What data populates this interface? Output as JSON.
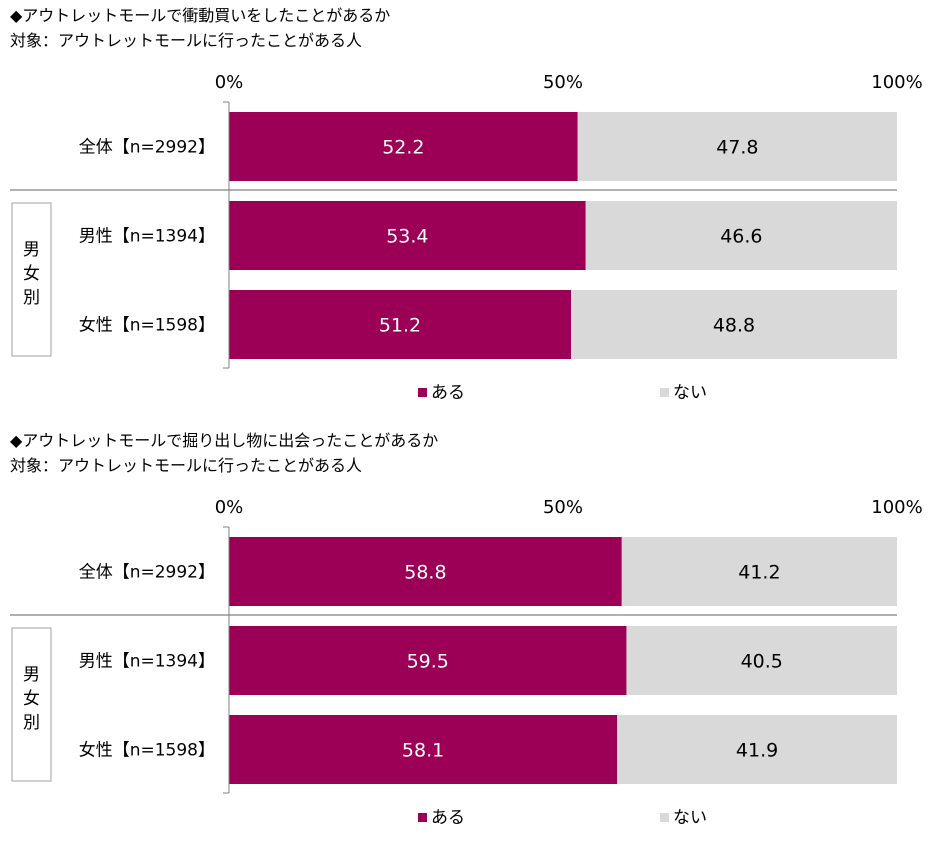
{
  "colors": {
    "yes": "#9b0056",
    "no": "#d9d9d9",
    "axis": "#808080"
  },
  "group_label": "男女別",
  "charts": [
    {
      "title": "◆アウトレットモールで衝動買いをしたことがあるか",
      "subtitle": "対象：アウトレットモールに行ったことがある人"
    },
    {
      "title": "◆アウトレットモールで掘り出し物に出会ったことがあるか",
      "subtitle": "対象：アウトレットモールに行ったことがある人"
    }
  ],
  "chart_data": [
    {
      "type": "bar",
      "orientation": "horizontal",
      "stacked": "100%",
      "title": "◆アウトレットモールで衝動買いをしたことがあるか",
      "subtitle": "対象：アウトレットモールに行ったことがある人",
      "categories": [
        "全体【n=2992】",
        "男性【n=1394】",
        "女性【n=1598】"
      ],
      "series": [
        {
          "name": "ある",
          "values": [
            52.2,
            53.4,
            51.2
          ]
        },
        {
          "name": "ない",
          "values": [
            47.8,
            46.6,
            48.8
          ]
        }
      ],
      "xticks": [
        "0%",
        "50%",
        "100%"
      ],
      "xlim": [
        0,
        100
      ],
      "legend": "bottom",
      "grid": false
    },
    {
      "type": "bar",
      "orientation": "horizontal",
      "stacked": "100%",
      "title": "◆アウトレットモールで掘り出し物に出会ったことがあるか",
      "subtitle": "対象：アウトレットモールに行ったことがある人",
      "categories": [
        "全体【n=2992】",
        "男性【n=1394】",
        "女性【n=1598】"
      ],
      "series": [
        {
          "name": "ある",
          "values": [
            58.8,
            59.5,
            58.1
          ]
        },
        {
          "name": "ない",
          "values": [
            41.2,
            40.5,
            41.9
          ]
        }
      ],
      "xticks": [
        "0%",
        "50%",
        "100%"
      ],
      "xlim": [
        0,
        100
      ],
      "legend": "bottom",
      "grid": false
    }
  ]
}
